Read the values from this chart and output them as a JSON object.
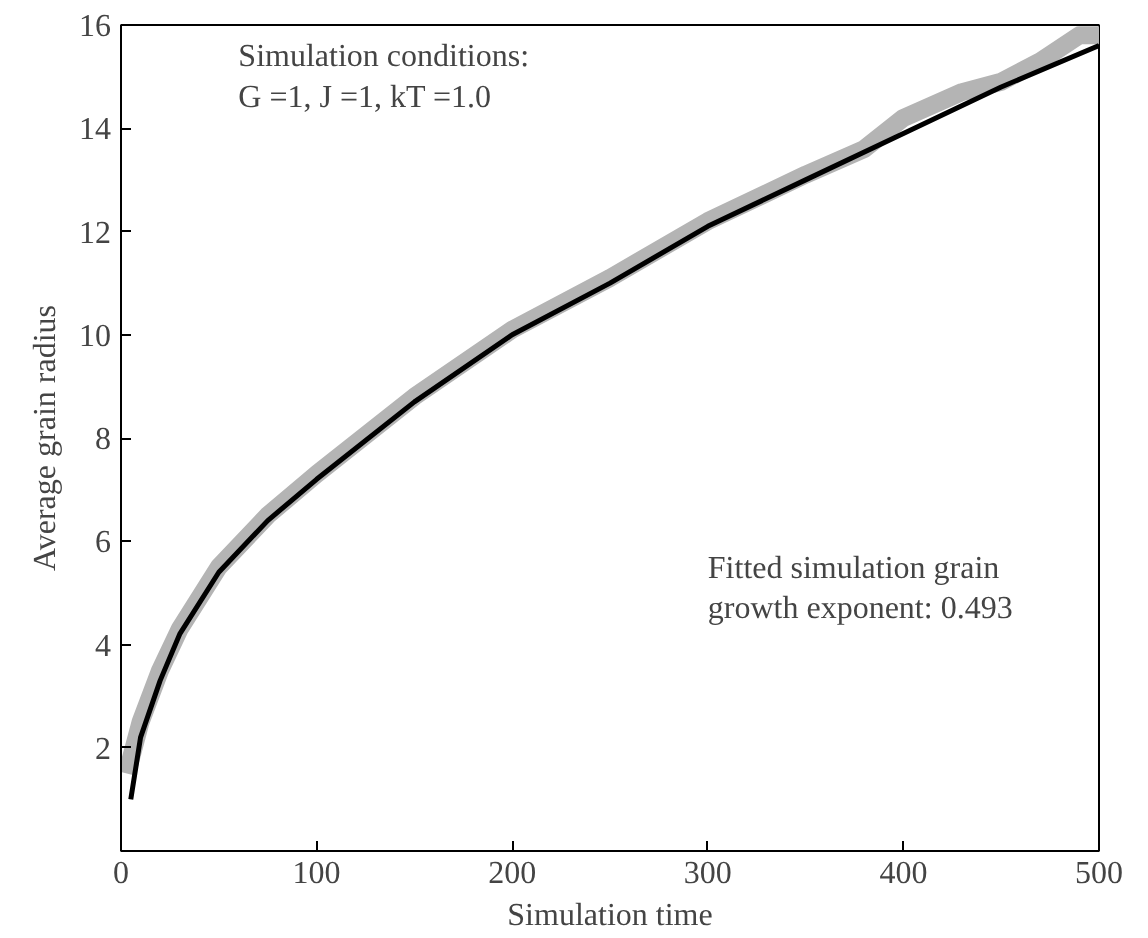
{
  "chart_data": {
    "type": "line",
    "xlabel": "Simulation time",
    "ylabel": "Average grain radius",
    "xlim": [
      0,
      500
    ],
    "ylim": [
      0,
      16
    ],
    "xticks": [
      0,
      100,
      200,
      300,
      400,
      500
    ],
    "yticks": [
      2,
      4,
      6,
      8,
      10,
      12,
      14,
      16
    ],
    "grid": false,
    "series": [
      {
        "color": "#b4b4b4",
        "x": [
          3,
          10,
          20,
          30,
          50,
          75,
          100,
          150,
          200,
          250,
          300,
          350,
          380,
          400,
          430,
          450,
          470,
          490,
          500
        ],
        "values": [
          1.5,
          2.5,
          3.5,
          4.3,
          5.5,
          6.5,
          7.3,
          8.8,
          10.1,
          11.1,
          12.2,
          13.1,
          13.6,
          14.2,
          14.7,
          14.9,
          15.3,
          15.8,
          15.8
        ]
      },
      {
        "color": "#000000",
        "x": [
          5,
          10,
          20,
          30,
          50,
          75,
          100,
          150,
          200,
          250,
          300,
          350,
          400,
          450,
          500
        ],
        "values": [
          1.0,
          2.2,
          3.3,
          4.2,
          5.4,
          6.4,
          7.2,
          8.7,
          10.0,
          11.0,
          12.1,
          13.0,
          13.9,
          14.8,
          15.6
        ]
      }
    ],
    "annotations": [
      "Simulation conditions:\nG =1, J =1, kT =1.0",
      "Fitted simulation grain\ngrowth exponent: 0.493"
    ]
  }
}
